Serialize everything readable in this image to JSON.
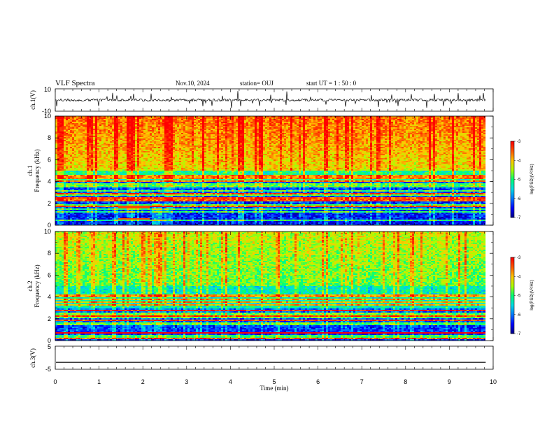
{
  "header": {
    "title": "VLF Spectra",
    "date": "Nov.10, 2024",
    "station": "station= OUJ",
    "start": "start  UT =   1 : 50 : 0"
  },
  "panels": {
    "ch1_wave": {
      "ylabel": "ch.1(V)",
      "ymax_label": "10",
      "ymin_label": "-10"
    },
    "ch1_spec": {
      "ylabel_top": "ch.1",
      "ylabel": "Frequency  (kHz)",
      "colorbar_label": "log(PSD)(V²/Hz)"
    },
    "ch2_spec": {
      "ylabel_top": "ch.2",
      "ylabel": "Frequency  (kHz)",
      "colorbar_label": "log(PSD)(V²/Hz)"
    },
    "ch3_wave": {
      "ylabel": "ch.3(V)",
      "ymax_label": "5",
      "ymin_label": "-5"
    }
  },
  "colorbar_ticks": [
    "-3",
    "-4",
    "-5",
    "-6",
    "-7"
  ],
  "xaxis": {
    "label": "Time  (min)"
  },
  "colors": {
    "scale": [
      "#000080",
      "#0000ff",
      "#00c8ff",
      "#00ff80",
      "#c8ff00",
      "#ff8000",
      "#ff0000",
      "#ffffff"
    ],
    "trace": "#000000"
  },
  "chart_data": [
    {
      "type": "line",
      "name": "ch.1 waveform",
      "x_range": [
        0,
        10
      ],
      "ylim": [
        -10,
        10
      ],
      "ylabel": "ch.1(V)",
      "yticks": [
        -10,
        10
      ],
      "baseline": 0,
      "data_end_min": 9.83
    },
    {
      "type": "heatmap",
      "xlabel": "Time  (min)",
      "ylabel": "Frequency  (kHz)",
      "xlim": [
        0,
        10
      ],
      "ylim": [
        0,
        10
      ],
      "yticks": [
        0,
        2,
        4,
        6,
        8,
        10
      ],
      "color_scale": "log(PSD)(V²/Hz)",
      "clim": [
        -7,
        -3
      ],
      "data_end_min": 9.83,
      "features": {
        "band_above_5kHz": "mostly -4 to -3 (yellow/red) with vertical impulsive streaks",
        "band_below_4kHz": "mostly -7 to -6 (blue) with horizontal lines",
        "horizontal_line_at_4.5kHz": true,
        "bright_tone_1.5_to_2.1min": [
          0.6,
          1.7
        ]
      }
    },
    {
      "type": "heatmap",
      "xlabel": "Time  (min)",
      "ylabel": "Frequency  (kHz)",
      "xlim": [
        0,
        10
      ],
      "ylim": [
        0,
        10
      ],
      "yticks": [
        0,
        2,
        4,
        6,
        8,
        10
      ],
      "color_scale": "log(PSD)(V²/Hz)",
      "clim": [
        -7,
        -3
      ],
      "data_end_min": 9.83,
      "features": {
        "band_above_5kHz": "mostly -5 to -4 (green/yellow) with vertical streaks",
        "band_below_3kHz": "mostly -7 to -6 (blue)",
        "horizontal_lines_kHz": [
          2.8,
          3.5,
          4.0
        ]
      }
    },
    {
      "type": "line",
      "name": "ch.3 waveform",
      "x_range": [
        0,
        10
      ],
      "ylim": [
        -5,
        5
      ],
      "ylabel": "ch.3(V)",
      "yticks": [
        -5,
        5
      ],
      "constant_value": -2.0,
      "data_end_min": 9.83
    }
  ],
  "xticks": [
    "0",
    "1",
    "2",
    "3",
    "4",
    "5",
    "6",
    "7",
    "8",
    "9",
    "10"
  ]
}
